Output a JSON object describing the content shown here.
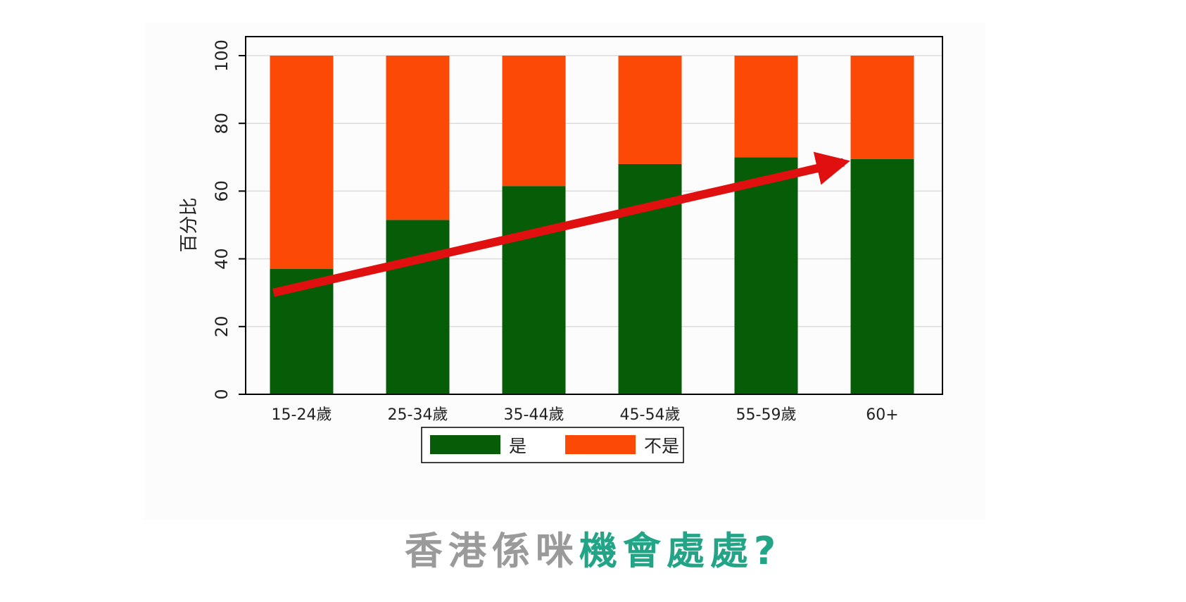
{
  "colors": {
    "yes": "#075d07",
    "no": "#fd4906",
    "arrow": "#e01010",
    "caption_grey": "#9a9a9a",
    "caption_teal": "#22a587",
    "gridline": "#dcdcdc",
    "axis": "#000000"
  },
  "chart_data": {
    "type": "bar",
    "stacked": true,
    "categories": [
      "15-24歲",
      "25-34歲",
      "35-44歲",
      "45-54歲",
      "55-59歲",
      "60+"
    ],
    "series": [
      {
        "name": "是",
        "values": [
          37,
          51.5,
          61.5,
          68,
          70,
          69.5
        ]
      },
      {
        "name": "不是",
        "values": [
          63,
          48.5,
          38.5,
          32,
          30,
          30.5
        ]
      }
    ],
    "ylabel": "百分比",
    "xlabel": "",
    "ylim": [
      0,
      100
    ],
    "yticks": [
      0,
      20,
      40,
      60,
      80,
      100
    ],
    "grid": true,
    "legend_position": "bottom",
    "annotation": {
      "type": "arrow",
      "from": {
        "category": "15-24歲",
        "value": 30
      },
      "to": {
        "category": "60+",
        "value": 68.5
      }
    }
  },
  "caption": {
    "part1": "香港係咪",
    "part2": "機會處處?"
  }
}
